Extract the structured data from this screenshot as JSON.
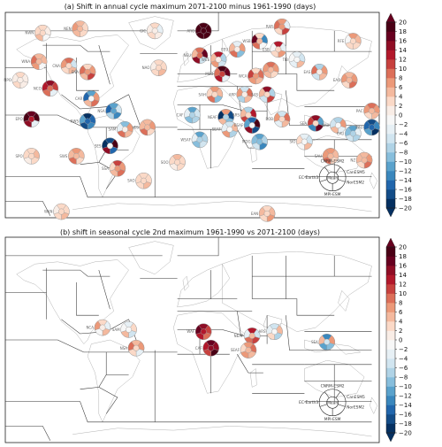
{
  "panels": [
    {
      "title": "(a) Shift in annual cycle maximum 2071-2100 minus 1961-1990  (days)",
      "regions": [
        {
          "label": "ARO"
        },
        {
          "label": "NWN"
        },
        {
          "label": "NEN"
        },
        {
          "label": "GIC"
        },
        {
          "label": "NEU"
        },
        {
          "label": "RAR"
        },
        {
          "label": "WSB"
        },
        {
          "label": "ESB"
        },
        {
          "label": "RFE"
        },
        {
          "label": "WNA"
        },
        {
          "label": "CNA"
        },
        {
          "label": "ENA"
        },
        {
          "label": "NPO"
        },
        {
          "label": "NAO"
        },
        {
          "label": "WCE"
        },
        {
          "label": "EEU"
        },
        {
          "label": "ECA"
        },
        {
          "label": "NCO"
        },
        {
          "label": "CAR"
        },
        {
          "label": "MED"
        },
        {
          "label": "WCA"
        },
        {
          "label": "TIB"
        },
        {
          "label": "EAS"
        },
        {
          "label": "EAO"
        },
        {
          "label": "EPO"
        },
        {
          "label": "SAH"
        },
        {
          "label": "ARP"
        },
        {
          "label": "SAS"
        },
        {
          "label": "NES"
        },
        {
          "label": "NWS"
        },
        {
          "label": "SAM"
        },
        {
          "label": "NSA"
        },
        {
          "label": "CAF"
        },
        {
          "label": "NEAF"
        },
        {
          "label": "ARS"
        },
        {
          "label": "BOB"
        },
        {
          "label": "SEA"
        },
        {
          "label": "PAC"
        },
        {
          "label": "SPO"
        },
        {
          "label": "SWS"
        },
        {
          "label": "SES"
        },
        {
          "label": "SAO"
        },
        {
          "label": "SSA"
        },
        {
          "label": "WSAF"
        },
        {
          "label": "SEAF"
        },
        {
          "label": "ESAF"
        },
        {
          "label": "MDG"
        },
        {
          "label": "SIO"
        },
        {
          "label": "NAU"
        },
        {
          "label": "CAU"
        },
        {
          "label": "EAU"
        },
        {
          "label": "SAU"
        },
        {
          "label": "NZ"
        },
        {
          "label": "SOO"
        },
        {
          "label": "WAN"
        },
        {
          "label": "EAN"
        }
      ]
    },
    {
      "title": "(b) shift in seasonal cycle 2nd maximum 1961-1990 vs 2071-2100 (days)",
      "regions": [
        {
          "label": "NCA"
        },
        {
          "label": "NSA"
        },
        {
          "label": "SAM"
        },
        {
          "label": "WAF"
        },
        {
          "label": "CAF"
        },
        {
          "label": "NEAF"
        },
        {
          "label": "SEAF"
        },
        {
          "label": "ARS"
        },
        {
          "label": "SEA"
        }
      ]
    }
  ],
  "legend": {
    "center": "Mean",
    "models": [
      "CNRM-ESM2",
      "CanESM5",
      "NorESM2",
      "MPI-ESM",
      "EC-Earth3"
    ]
  },
  "colorbar": {
    "ticks": [
      "20",
      "18",
      "16",
      "14",
      "12",
      "10",
      "8",
      "6",
      "4",
      "2",
      "0",
      "−2",
      "−4",
      "−6",
      "−8",
      "−10",
      "−12",
      "−14",
      "−16",
      "−18",
      "−20"
    ],
    "min": -20,
    "max": 20,
    "colors": [
      "#053061",
      "#134c87",
      "#2166ac",
      "#3a87bd",
      "#5aa2cc",
      "#87bedc",
      "#b0d3e6",
      "#d1e5f0",
      "#e7f0f5",
      "#f7f7f7",
      "#f9ede6",
      "#fbd9c7",
      "#f4b99e",
      "#ec9979",
      "#dc6f59",
      "#c7413e",
      "#b2182b",
      "#8f0d25",
      "#67001f",
      "#4a0015"
    ]
  }
}
